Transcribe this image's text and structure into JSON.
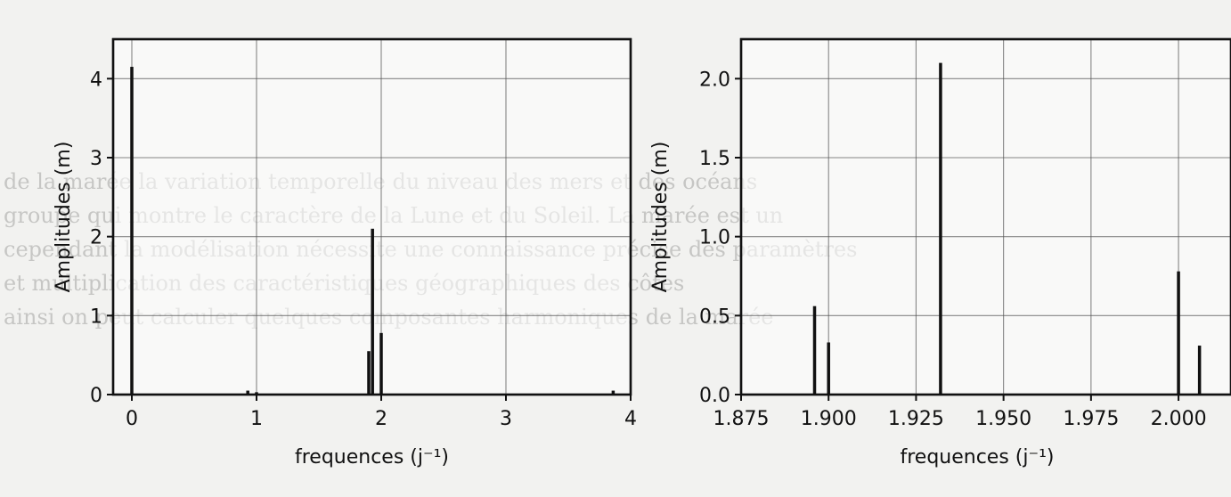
{
  "background_text": [
    "de la marée la variation temporelle du niveau des mers et des océans",
    "groupe qui montre le caractère de la Lune et du Soleil. La marée est un",
    "cependant la modélisation nécessite une connaissance précise des paramètres",
    "et multiplication des caractéristiques géographiques des côtes",
    "ainsi on peut calculer quelques composantes harmoniques de la marée"
  ],
  "chart_data": [
    {
      "type": "bar",
      "title": "",
      "xlabel": "frequences (j⁻¹)",
      "ylabel": "Amplitudes (m)",
      "xlim": [
        -0.15,
        4.0
      ],
      "ylim": [
        0,
        4.5
      ],
      "xticks": [
        0,
        1,
        2,
        3,
        4
      ],
      "xtick_labels": [
        "0",
        "1",
        "2",
        "3",
        "4"
      ],
      "yticks": [
        0,
        1,
        2,
        3,
        4
      ],
      "ytick_labels": [
        "0",
        "1",
        "2",
        "3",
        "4"
      ],
      "grid": true,
      "series": [
        {
          "x": [
            0.0,
            0.93,
            1.0,
            1.9,
            1.93,
            2.0,
            3.86
          ],
          "values": [
            4.15,
            0.05,
            0.03,
            0.55,
            2.1,
            0.78,
            0.05
          ]
        }
      ]
    },
    {
      "type": "bar",
      "title": "",
      "xlabel": "frequences (j⁻¹)",
      "ylabel": "Amplitudes (m)",
      "xlim": [
        1.875,
        2.015
      ],
      "ylim": [
        0,
        2.25
      ],
      "xticks": [
        1.875,
        1.9,
        1.925,
        1.95,
        1.975,
        2.0
      ],
      "xtick_labels": [
        "1.875",
        "1.900",
        "1.925",
        "1.950",
        "1.975",
        "2.000"
      ],
      "yticks": [
        0.0,
        0.5,
        1.0,
        1.5,
        2.0
      ],
      "ytick_labels": [
        "0.0",
        "0.5",
        "1.0",
        "1.5",
        "2.0"
      ],
      "grid": true,
      "series": [
        {
          "x": [
            1.896,
            1.9,
            1.932,
            2.0,
            2.006
          ],
          "values": [
            0.56,
            0.33,
            2.1,
            0.78,
            0.31
          ]
        }
      ]
    }
  ]
}
